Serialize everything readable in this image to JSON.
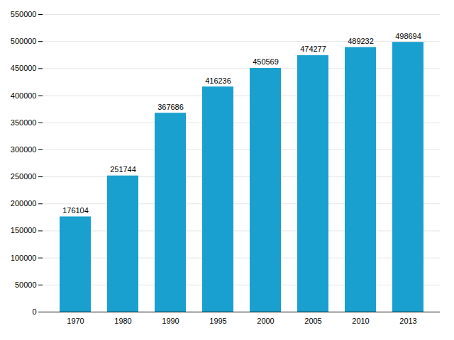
{
  "chart_data": {
    "type": "bar",
    "categories": [
      "1970",
      "1980",
      "1990",
      "1995",
      "2000",
      "2005",
      "2010",
      "2013"
    ],
    "values": [
      176104,
      251744,
      367686,
      416236,
      450569,
      474277,
      489232,
      498694
    ],
    "color": "#19A0CE",
    "ylim": [
      0,
      550000
    ],
    "yticks": [
      0,
      50000,
      100000,
      150000,
      200000,
      250000,
      300000,
      350000,
      400000,
      450000,
      500000,
      550000
    ],
    "grid": true,
    "data_labels": true
  }
}
